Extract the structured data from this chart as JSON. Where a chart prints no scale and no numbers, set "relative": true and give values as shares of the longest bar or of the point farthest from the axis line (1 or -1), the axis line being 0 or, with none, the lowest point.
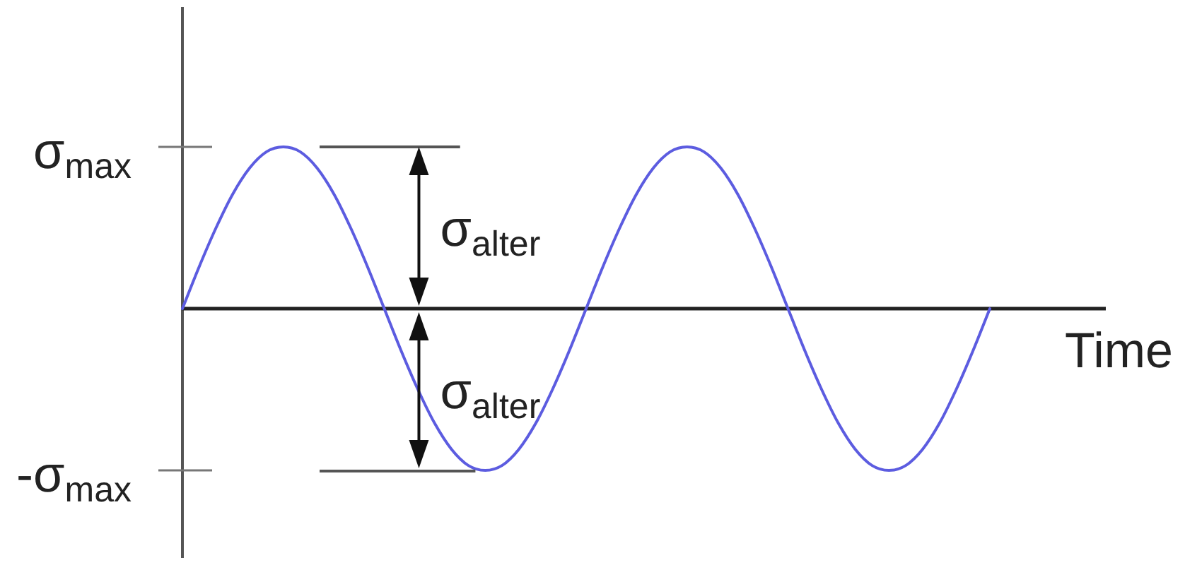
{
  "chart_data": {
    "type": "line",
    "xlabel": "Time",
    "relative": true,
    "marker": "none",
    "line_style": "solid",
    "categories": [
      null,
      null,
      null,
      null,
      null,
      null,
      null,
      null,
      null,
      null,
      null,
      null,
      null,
      null,
      null,
      null,
      null,
      null,
      null,
      null,
      null,
      null,
      null,
      null,
      null,
      null,
      null,
      null,
      null,
      null,
      null,
      null,
      null,
      null,
      null,
      null,
      null,
      null,
      null,
      null,
      null,
      null,
      null,
      null,
      null,
      null,
      null,
      null,
      null
    ],
    "series": [
      {
        "color": "#5c5ce0",
        "values": [
          0,
          0.26,
          0.5,
          0.71,
          0.87,
          0.97,
          1,
          0.97,
          0.87,
          0.71,
          0.5,
          0.26,
          0,
          -0.26,
          -0.5,
          -0.71,
          -0.87,
          -0.97,
          -1,
          -0.97,
          -0.87,
          -0.71,
          -0.5,
          -0.26,
          0,
          0.26,
          0.5,
          0.71,
          0.87,
          0.97,
          1,
          0.97,
          0.87,
          0.71,
          0.5,
          0.26,
          0,
          -0.26,
          -0.5,
          -0.71,
          -0.87,
          -0.97,
          -1,
          -0.97,
          -0.87,
          -0.71,
          -0.5,
          -0.26,
          0
        ]
      }
    ],
    "annotations": [
      "σ$_{max}$",
      "-σ$_{max}$",
      "σ$_{alter}$",
      "σ$_{alter}$"
    ]
  }
}
